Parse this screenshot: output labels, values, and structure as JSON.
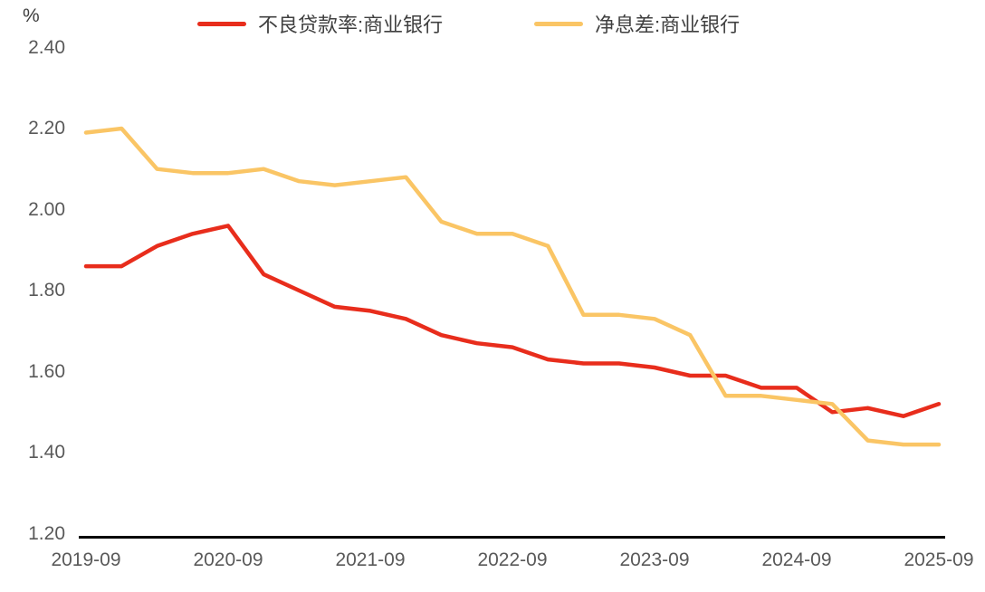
{
  "chart_data": {
    "type": "line",
    "title": "",
    "y_unit": "%",
    "grid": false,
    "legend_position": "top",
    "ylim": [
      1.2,
      2.4
    ],
    "y_ticks": [
      "2.40",
      "2.20",
      "2.00",
      "1.80",
      "1.60",
      "1.40",
      "1.20"
    ],
    "x": [
      "2019-09",
      "2019-12",
      "2020-03",
      "2020-06",
      "2020-09",
      "2020-12",
      "2021-03",
      "2021-06",
      "2021-09",
      "2021-12",
      "2022-03",
      "2022-06",
      "2022-09",
      "2022-12",
      "2023-03",
      "2023-06",
      "2023-09",
      "2023-12",
      "2024-03",
      "2024-06",
      "2024-09",
      "2024-12",
      "2025-03",
      "2025-06",
      "2025-09"
    ],
    "x_tick_labels": [
      "2019-09",
      "2020-09",
      "2021-09",
      "2022-09",
      "2023-09",
      "2024-09",
      "2025-09"
    ],
    "x_tick_every": 4,
    "series": [
      {
        "name": "不良贷款率:商业银行",
        "color": "#E82D1C",
        "values": [
          1.86,
          1.86,
          1.91,
          1.94,
          1.96,
          1.84,
          1.8,
          1.76,
          1.75,
          1.73,
          1.69,
          1.67,
          1.66,
          1.63,
          1.62,
          1.62,
          1.61,
          1.59,
          1.59,
          1.56,
          1.56,
          1.5,
          1.51,
          1.49,
          1.52
        ]
      },
      {
        "name": "净息差:商业银行",
        "color": "#FAC565",
        "values": [
          2.19,
          2.2,
          2.1,
          2.09,
          2.09,
          2.1,
          2.07,
          2.06,
          2.07,
          2.08,
          1.97,
          1.94,
          1.94,
          1.91,
          1.74,
          1.74,
          1.73,
          1.69,
          1.54,
          1.54,
          1.53,
          1.52,
          1.43,
          1.42,
          1.42
        ]
      }
    ]
  }
}
